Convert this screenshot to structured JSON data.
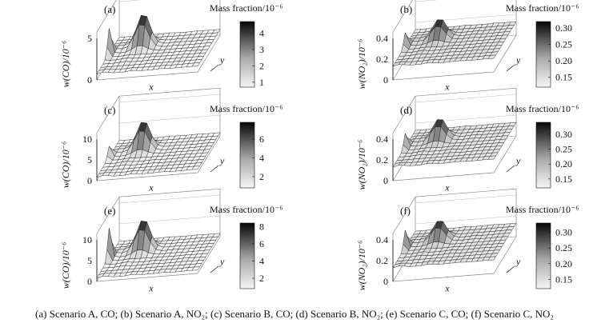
{
  "caption": "(a) Scenario A, CO; (b) Scenario A, NO₂; (c) Scenario B, CO; (d) Scenario B, NO₂; (e) Scenario C, CO; (f) Scenario C, NO₂",
  "chart_data": [
    {
      "type": "surface",
      "panel_label": "(a)",
      "colorbar_title": "Mass fraction/10⁻⁶",
      "colorbar_ticks": [
        "1",
        "2",
        "3",
        "4"
      ],
      "colorbar_range": [
        0.7,
        4.7
      ],
      "zlabel": "w(CO)/10⁻⁶",
      "zticks": [
        "0",
        "5"
      ],
      "zlim": [
        0,
        5
      ],
      "xlabel": "x",
      "ylabel": "y",
      "surface": {
        "peak": 4.7,
        "peak_x": 0.3,
        "peak_y": 0.7,
        "edge_spike": 3.8,
        "base": 0.7
      },
      "colormap": "gray-reversed"
    },
    {
      "type": "surface",
      "panel_label": "(b)",
      "colorbar_title": "Mass fraction/10⁻⁶",
      "colorbar_ticks": [
        "0.30",
        "0.25",
        "0.20",
        "0.15"
      ],
      "colorbar_range": [
        0.12,
        0.32
      ],
      "zlabel": "w(NO₂)/10⁻⁶",
      "zticks": [
        "0",
        "0.2",
        "0.4"
      ],
      "zlim": [
        0,
        0.4
      ],
      "xlabel": "x",
      "ylabel": "y",
      "surface": {
        "peak": 0.32,
        "peak_x": 0.3,
        "peak_y": 0.7,
        "edge_spike": 0.26,
        "base": 0.13
      },
      "colormap": "gray-reversed"
    },
    {
      "type": "surface",
      "panel_label": "(c)",
      "colorbar_title": "Mass fraction/10⁻⁶",
      "colorbar_ticks": [
        "2",
        "4",
        "6"
      ],
      "colorbar_range": [
        0.8,
        7.8
      ],
      "zlabel": "w(CO)/10⁻⁶",
      "zticks": [
        "0",
        "5",
        "10"
      ],
      "zlim": [
        0,
        10
      ],
      "xlabel": "x",
      "ylabel": "y",
      "surface": {
        "peak": 7.8,
        "peak_x": 0.3,
        "peak_y": 0.7,
        "edge_spike": 3.5,
        "base": 0.8
      },
      "colormap": "gray-reversed"
    },
    {
      "type": "surface",
      "panel_label": "(d)",
      "colorbar_title": "Mass fraction/10⁻⁶",
      "colorbar_ticks": [
        "0.30",
        "0.25",
        "0.20",
        "0.15"
      ],
      "colorbar_range": [
        0.12,
        0.34
      ],
      "zlabel": "w(NO₂)/10⁻⁶",
      "zticks": [
        "0",
        "0.2",
        "0.4"
      ],
      "zlim": [
        0,
        0.4
      ],
      "xlabel": "x",
      "ylabel": "y",
      "surface": {
        "peak": 0.33,
        "peak_x": 0.3,
        "peak_y": 0.7,
        "edge_spike": 0.26,
        "base": 0.13
      },
      "colormap": "gray-reversed"
    },
    {
      "type": "surface",
      "panel_label": "(e)",
      "colorbar_title": "Mass fraction/10⁻⁶",
      "colorbar_ticks": [
        "8",
        "6",
        "4",
        "2"
      ],
      "colorbar_range": [
        0.8,
        8.4
      ],
      "zlabel": "w(CO)/10⁻⁶",
      "zticks": [
        "0",
        "5",
        "10"
      ],
      "zlim": [
        0,
        10
      ],
      "xlabel": "x",
      "ylabel": "y",
      "surface": {
        "peak": 8.4,
        "peak_x": 0.3,
        "peak_y": 0.7,
        "edge_spike": 8.0,
        "base": 0.8
      },
      "colormap": "gray-reversed"
    },
    {
      "type": "surface",
      "panel_label": "(f)",
      "colorbar_title": "Mass fraction/10⁻⁶",
      "colorbar_ticks": [
        "0.30",
        "0.25",
        "0.20",
        "0.15"
      ],
      "colorbar_range": [
        0.12,
        0.33
      ],
      "zlabel": "w(NO₂)/10⁻⁶",
      "zticks": [
        "0",
        "0.2",
        "0.4"
      ],
      "zlim": [
        0,
        0.4
      ],
      "xlabel": "x",
      "ylabel": "y",
      "surface": {
        "peak": 0.32,
        "peak_x": 0.3,
        "peak_y": 0.7,
        "edge_spike": 0.3,
        "base": 0.13
      },
      "colormap": "gray-reversed"
    }
  ]
}
